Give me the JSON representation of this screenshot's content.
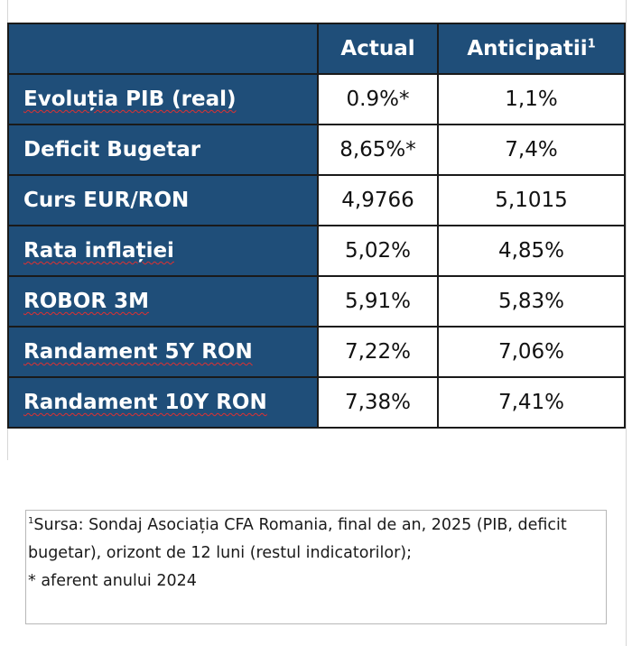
{
  "table": {
    "headers": {
      "label": "",
      "actual": "Actual",
      "anticipated": "Anticipatii",
      "anticipated_footnote_marker": "1"
    },
    "rows": [
      {
        "label": "Evoluția PIB (real)",
        "actual": "0.9%*",
        "anticipated": "1,1%"
      },
      {
        "label": "Deficit Bugetar",
        "actual": "8,65%*",
        "anticipated": "7,4%"
      },
      {
        "label": "Curs EUR/RON",
        "actual": "4,9766",
        "anticipated": "5,1015"
      },
      {
        "label": "Rata inflației",
        "actual": "5,02%",
        "anticipated": "4,85%"
      },
      {
        "label": "ROBOR 3M",
        "actual": "5,91%",
        "anticipated": "5,83%"
      },
      {
        "label": "Randament 5Y RON",
        "actual": "7,22%",
        "anticipated": "7,06%"
      },
      {
        "label": "Randament 10Y RON",
        "actual": "7,38%",
        "anticipated": "7,41%"
      }
    ]
  },
  "note": {
    "marker": "1",
    "line1": "Sursa: Sondaj Asociația CFA Romania, final de an, 2025 (PIB, deficit",
    "line2": "bugetar), orizont de 12 luni (restul indicatorilor);",
    "line3": "* aferent anului 2024"
  },
  "colors": {
    "header_bg": "#1f4e79",
    "header_text": "#ffffff",
    "border": "#1a1a1a",
    "spellcheck_underline": "#e03030"
  }
}
